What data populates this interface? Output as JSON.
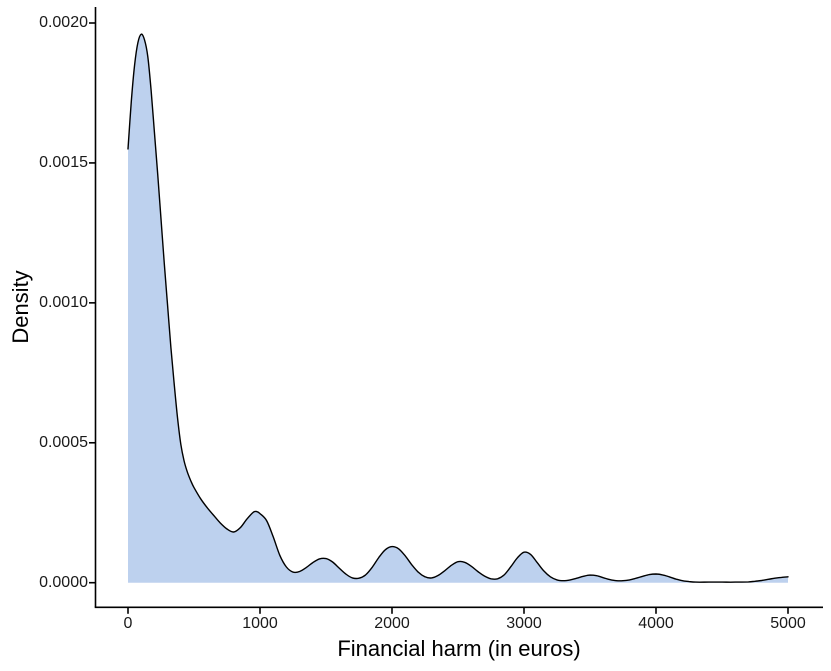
{
  "figure": {
    "xlabel": "Financial harm (in euros)",
    "ylabel": "Density"
  },
  "chart_data": {
    "type": "area",
    "title": "",
    "xlabel": "Financial harm (in euros)",
    "ylabel": "Density",
    "xlim": [
      0,
      5000
    ],
    "ylim": [
      0,
      0.002
    ],
    "x_tick_values": [
      0,
      1000,
      2000,
      3000,
      4000,
      5000
    ],
    "x_tick_labels": [
      "0",
      "1000",
      "2000",
      "3000",
      "4000",
      "5000"
    ],
    "y_tick_values": [
      0,
      0.0005,
      0.001,
      0.0015,
      0.002
    ],
    "y_tick_labels": [
      "0.0000",
      "0.0005",
      "0.0010",
      "0.0015",
      "0.0020"
    ],
    "grid": false,
    "legend": false,
    "fill_color": "#BDD1EE",
    "line_color": "#000000",
    "axis_color": "#000000",
    "series_name": "density of financial harm",
    "points": [
      [
        0,
        0.00155
      ],
      [
        25,
        0.00172
      ],
      [
        50,
        0.00185
      ],
      [
        75,
        0.00193
      ],
      [
        100,
        0.00196
      ],
      [
        125,
        0.00194
      ],
      [
        150,
        0.00188
      ],
      [
        175,
        0.00176
      ],
      [
        200,
        0.00161
      ],
      [
        225,
        0.00146
      ],
      [
        250,
        0.0013
      ],
      [
        275,
        0.00114
      ],
      [
        300,
        0.00099
      ],
      [
        325,
        0.00084
      ],
      [
        350,
        0.00071
      ],
      [
        375,
        0.00059
      ],
      [
        400,
        0.000495
      ],
      [
        425,
        0.000435
      ],
      [
        450,
        0.000395
      ],
      [
        475,
        0.000365
      ],
      [
        500,
        0.00034
      ],
      [
        550,
        0.0003
      ],
      [
        600,
        0.000268
      ],
      [
        650,
        0.00024
      ],
      [
        700,
        0.000213
      ],
      [
        750,
        0.000192
      ],
      [
        800,
        0.000181
      ],
      [
        850,
        0.000196
      ],
      [
        900,
        0.000227
      ],
      [
        950,
        0.000252
      ],
      [
        975,
        0.000254
      ],
      [
        1000,
        0.000247
      ],
      [
        1050,
        0.000222
      ],
      [
        1100,
        0.000164
      ],
      [
        1150,
        9.8e-05
      ],
      [
        1200,
        5.6e-05
      ],
      [
        1250,
        3.8e-05
      ],
      [
        1300,
        4e-05
      ],
      [
        1350,
        5.4e-05
      ],
      [
        1400,
        7.2e-05
      ],
      [
        1450,
        8.5e-05
      ],
      [
        1500,
        8.6e-05
      ],
      [
        1550,
        7.4e-05
      ],
      [
        1600,
        5.2e-05
      ],
      [
        1650,
        3.1e-05
      ],
      [
        1700,
        1.7e-05
      ],
      [
        1750,
        1.6e-05
      ],
      [
        1800,
        2.8e-05
      ],
      [
        1850,
        5.5e-05
      ],
      [
        1900,
        9e-05
      ],
      [
        1950,
        0.000118
      ],
      [
        2000,
        0.000129
      ],
      [
        2050,
        0.000121
      ],
      [
        2100,
        9.6e-05
      ],
      [
        2150,
        6.4e-05
      ],
      [
        2200,
        3.7e-05
      ],
      [
        2250,
        2.1e-05
      ],
      [
        2300,
        1.7e-05
      ],
      [
        2350,
        2.6e-05
      ],
      [
        2400,
        4.3e-05
      ],
      [
        2450,
        6.2e-05
      ],
      [
        2500,
        7.5e-05
      ],
      [
        2550,
        7.3e-05
      ],
      [
        2600,
        5.9e-05
      ],
      [
        2650,
        4e-05
      ],
      [
        2700,
        2.4e-05
      ],
      [
        2750,
        1.4e-05
      ],
      [
        2800,
        1.4e-05
      ],
      [
        2850,
        2.8e-05
      ],
      [
        2900,
        5.7e-05
      ],
      [
        2950,
        8.9e-05
      ],
      [
        3000,
        0.000109
      ],
      [
        3050,
        0.000101
      ],
      [
        3100,
        7.2e-05
      ],
      [
        3150,
        4.2e-05
      ],
      [
        3200,
        2.1e-05
      ],
      [
        3250,
        1e-05
      ],
      [
        3300,
        7e-06
      ],
      [
        3350,
        1e-05
      ],
      [
        3400,
        1.6e-05
      ],
      [
        3450,
        2.3e-05
      ],
      [
        3500,
        2.7e-05
      ],
      [
        3550,
        2.5e-05
      ],
      [
        3600,
        1.8e-05
      ],
      [
        3650,
        1.1e-05
      ],
      [
        3700,
        7e-06
      ],
      [
        3750,
        7e-06
      ],
      [
        3800,
        1e-05
      ],
      [
        3850,
        1.6e-05
      ],
      [
        3900,
        2.3e-05
      ],
      [
        3950,
        2.9e-05
      ],
      [
        4000,
        3.1e-05
      ],
      [
        4050,
        2.8e-05
      ],
      [
        4100,
        2.1e-05
      ],
      [
        4150,
        1.3e-05
      ],
      [
        4200,
        7e-06
      ],
      [
        4250,
        4e-06
      ],
      [
        4300,
        2e-06
      ],
      [
        4400,
        2e-06
      ],
      [
        4500,
        2e-06
      ],
      [
        4600,
        2e-06
      ],
      [
        4700,
        3e-06
      ],
      [
        4750,
        5e-06
      ],
      [
        4800,
        8e-06
      ],
      [
        4850,
        1.2e-05
      ],
      [
        4900,
        1.6e-05
      ],
      [
        4950,
        1.9e-05
      ],
      [
        5000,
        2.1e-05
      ]
    ]
  }
}
